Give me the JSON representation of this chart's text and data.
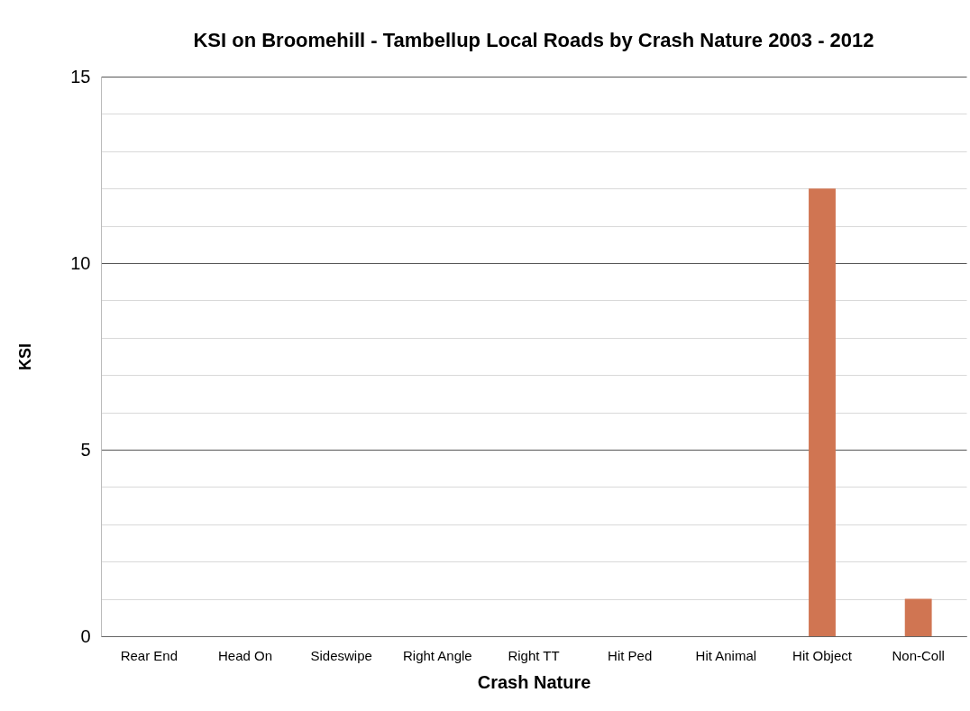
{
  "chart_data": {
    "type": "bar",
    "title": "KSI on Broomehill - Tambellup Local Roads by Crash Nature 2003 - 2012",
    "xlabel": "Crash Nature",
    "ylabel": "KSI",
    "categories": [
      "Rear End",
      "Head On",
      "Sideswipe",
      "Right Angle",
      "Right TT",
      "Hit Ped",
      "Hit Animal",
      "Hit Object",
      "Non-Coll"
    ],
    "values": [
      0,
      0,
      0,
      0,
      0,
      0,
      0,
      12,
      1
    ],
    "color": "#d07552",
    "ylim": [
      0,
      15
    ],
    "yticks": [
      0,
      {
        "value": 1,
        "label": null
      },
      {
        "value": 2,
        "label": null
      },
      {
        "value": 3,
        "label": null
      },
      {
        "value": 4,
        "label": null
      },
      5,
      {
        "value": 6,
        "label": null
      },
      {
        "value": 7,
        "label": null
      },
      {
        "value": 8,
        "label": null
      },
      {
        "value": 9,
        "label": null
      },
      10,
      {
        "value": 11,
        "label": null
      },
      {
        "value": 12,
        "label": null
      },
      {
        "value": 13,
        "label": null
      },
      {
        "value": 14,
        "label": null
      },
      15
    ],
    "grid": "y"
  }
}
